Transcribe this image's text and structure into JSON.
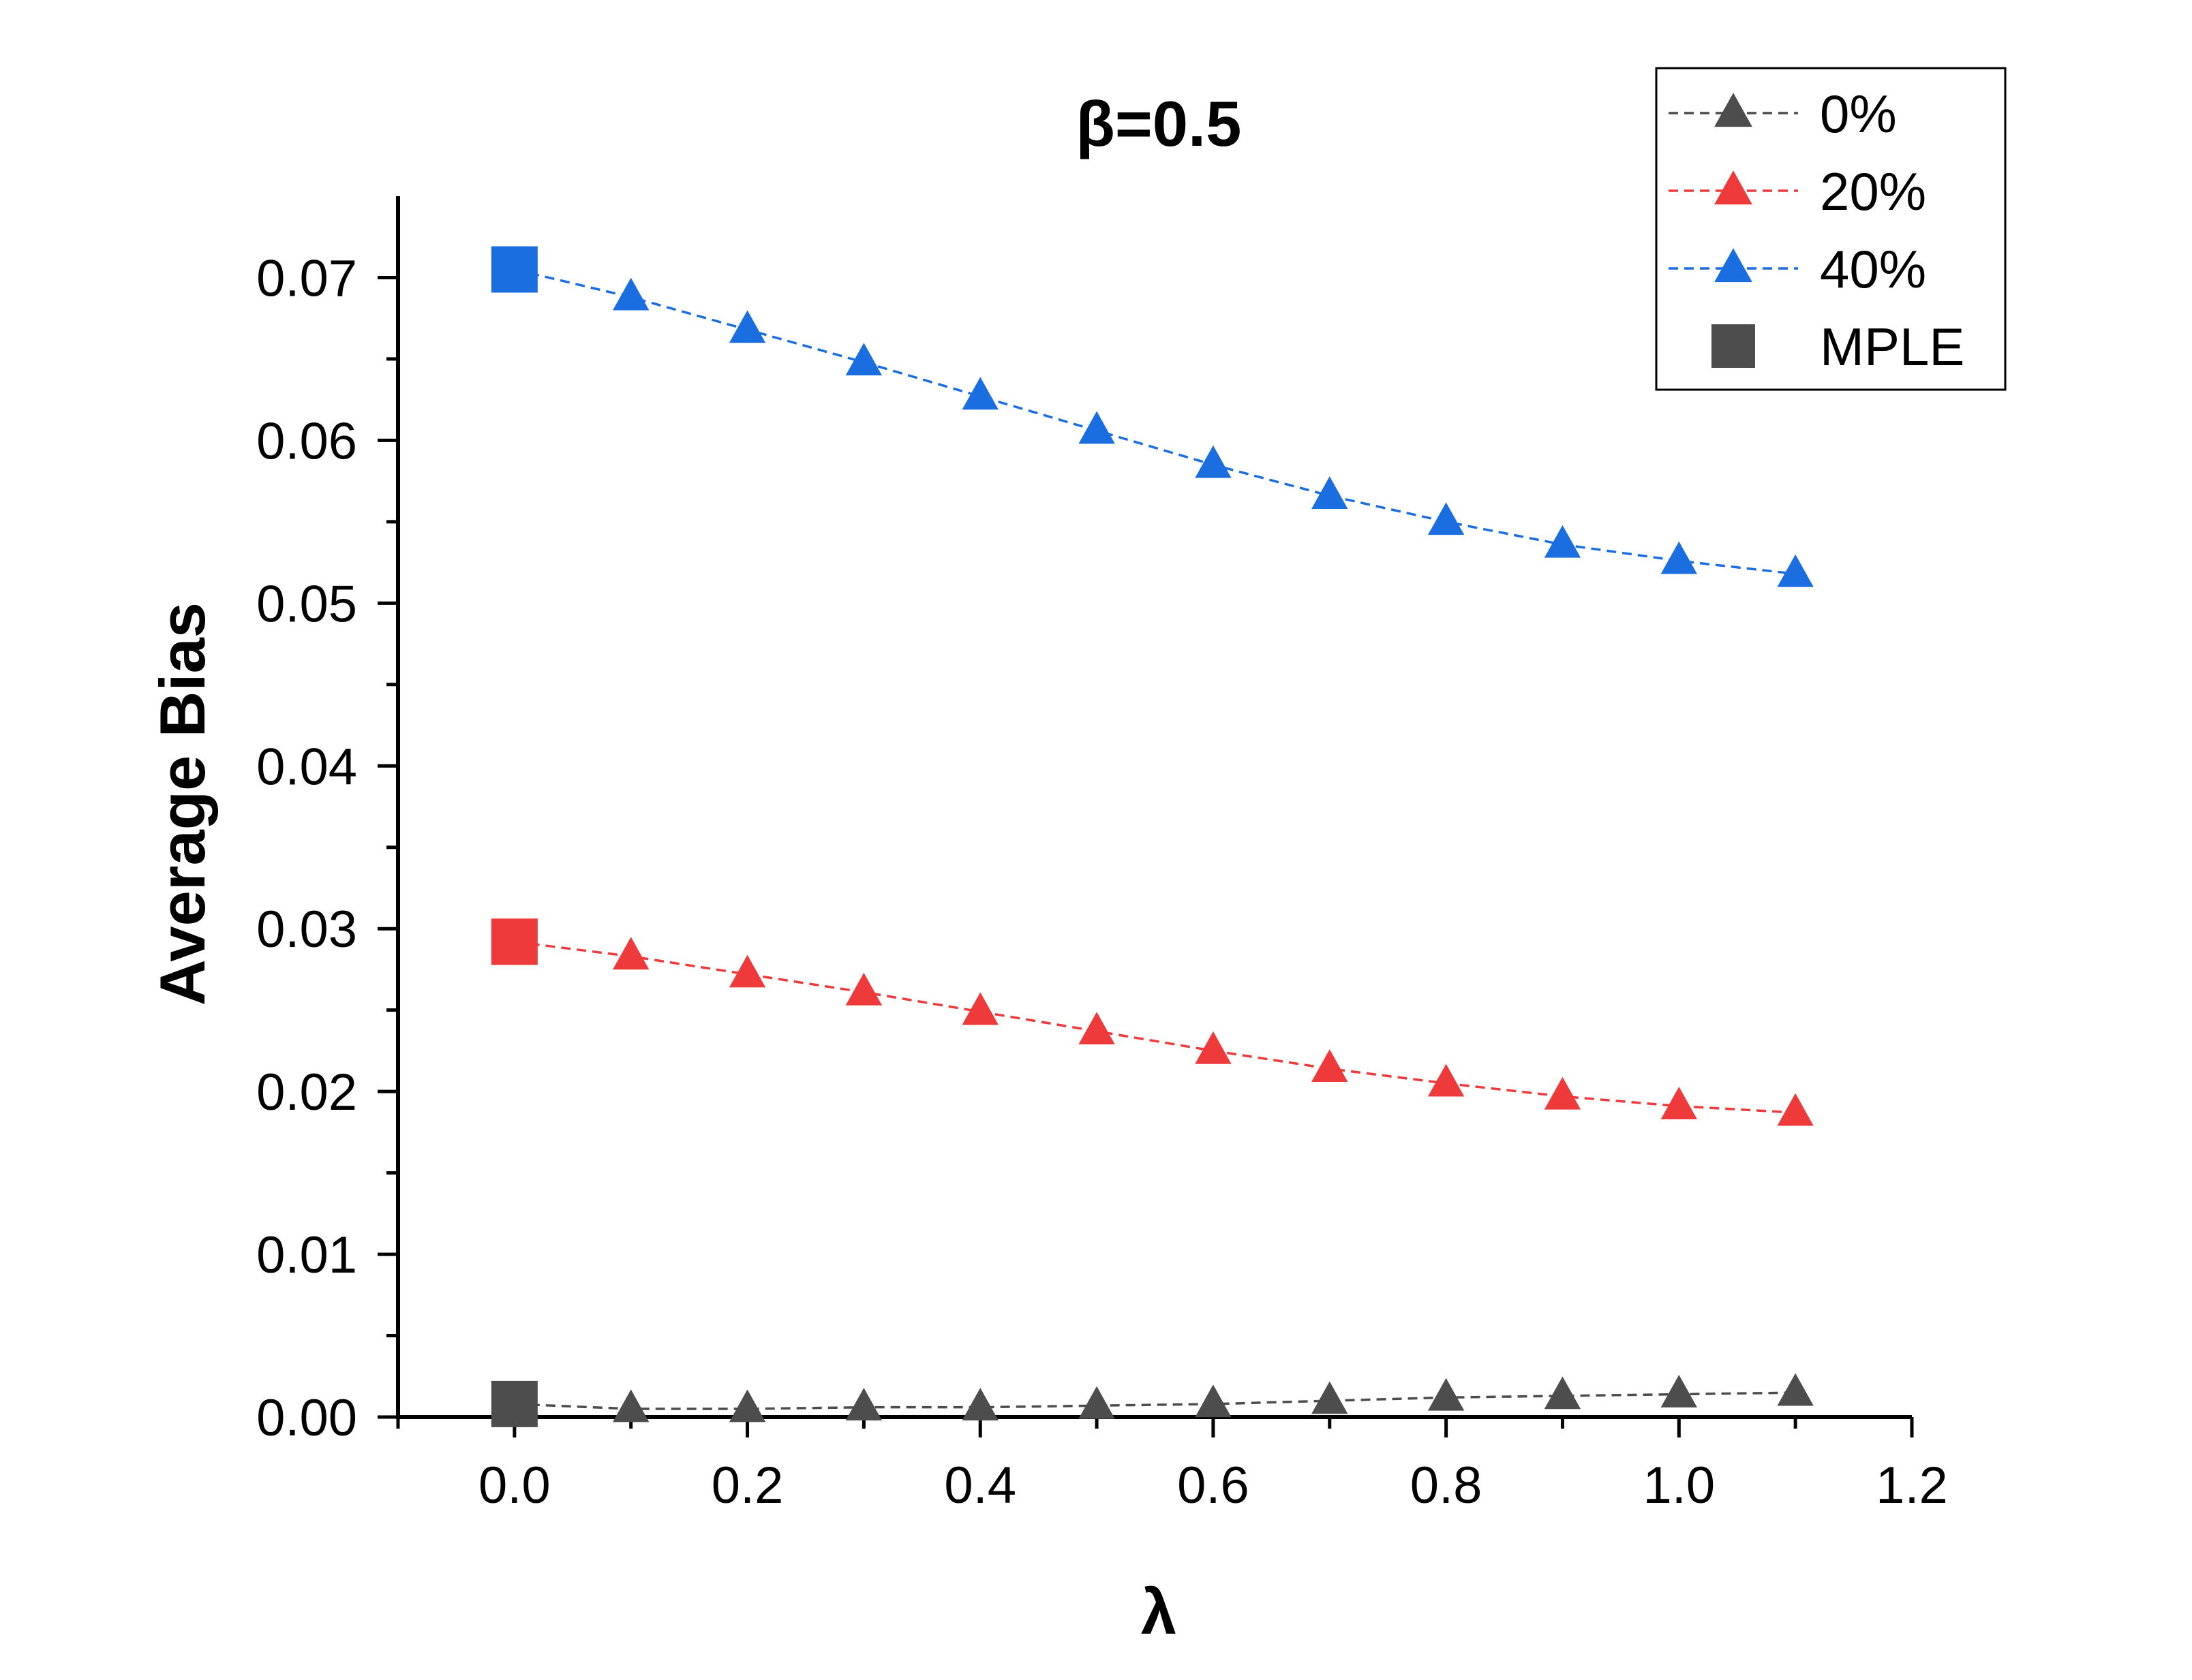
{
  "chart_data": {
    "type": "line",
    "title": "β=0.5",
    "xlabel": "λ",
    "ylabel": "Average Bias",
    "xlim": [
      -0.1,
      1.2
    ],
    "ylim": [
      0.0,
      0.075
    ],
    "x_ticks": [
      "0.0",
      "0.2",
      "0.4",
      "0.6",
      "0.8",
      "1.0",
      "1.2"
    ],
    "x_tick_values": [
      0.0,
      0.2,
      0.4,
      0.6,
      0.8,
      1.0,
      1.2
    ],
    "y_ticks": [
      "0.00",
      "0.01",
      "0.02",
      "0.03",
      "0.04",
      "0.05",
      "0.06",
      "0.07"
    ],
    "y_tick_values": [
      0.0,
      0.01,
      0.02,
      0.03,
      0.04,
      0.05,
      0.06,
      0.07
    ],
    "legend_position": "top-right",
    "grid": false,
    "x": [
      0.1,
      0.2,
      0.3,
      0.4,
      0.5,
      0.6,
      0.7,
      0.8,
      0.9,
      1.0,
      1.1
    ],
    "series": [
      {
        "name": "0%",
        "color": "#4d4d4d",
        "marker": "triangle",
        "line_style": "dashed",
        "values": [
          0.0005,
          0.0005,
          0.0006,
          0.0006,
          0.0007,
          0.0008,
          0.001,
          0.0012,
          0.0013,
          0.0014,
          0.0015
        ]
      },
      {
        "name": "20%",
        "color": "#ee3a3a",
        "marker": "triangle",
        "line_style": "dashed",
        "values": [
          0.0283,
          0.0272,
          0.0261,
          0.0249,
          0.0237,
          0.0225,
          0.0214,
          0.0205,
          0.0197,
          0.0191,
          0.0187
        ]
      },
      {
        "name": "40%",
        "color": "#1a6ee0",
        "marker": "triangle",
        "line_style": "dashed",
        "values": [
          0.0688,
          0.0668,
          0.0648,
          0.0627,
          0.0606,
          0.0585,
          0.0566,
          0.055,
          0.0536,
          0.0526,
          0.0518
        ]
      }
    ],
    "mple": {
      "name": "MPLE",
      "legend_color": "#4d4d4d",
      "marker": "square",
      "x": 0.0,
      "points": [
        {
          "value": 0.0008,
          "color": "#4d4d4d"
        },
        {
          "value": 0.0292,
          "color": "#ee3a3a"
        },
        {
          "value": 0.0705,
          "color": "#1a6ee0"
        }
      ]
    }
  }
}
